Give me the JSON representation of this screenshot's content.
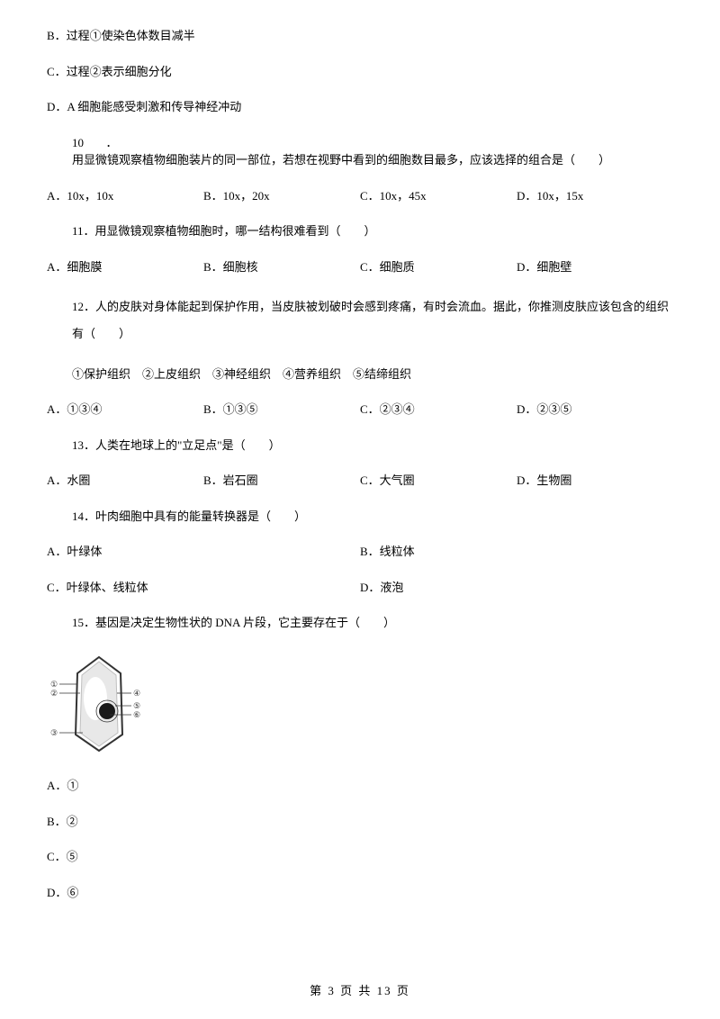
{
  "q9": {
    "optB": "B．过程①使染色体数目减半",
    "optC": "C．过程②表示细胞分化",
    "optD": "D．A 细胞能感受刺激和传导神经冲动"
  },
  "q10": {
    "num": "10",
    "dot": "．",
    "stem": "用显微镜观察植物细胞装片的同一部位，若想在视野中看到的细胞数目最多，应该选择的组合是（　　）",
    "A": "A．10x，10x",
    "B": "B．10x，20x",
    "C": "C．10x，45x",
    "D": "D．10x，15x"
  },
  "q11": {
    "lead": "11．用显微镜观察植物细胞时，哪一结构很难看到（　　）",
    "A": "A．细胞膜",
    "B": "B．细胞核",
    "C": "C．细胞质",
    "D": "D．细胞壁"
  },
  "q12": {
    "lead": "12．人的皮肤对身体能起到保护作用，当皮肤被划破时会感到疼痛，有时会流血。据此，你推测皮肤应该包含的组织有（　　）",
    "sub": "①保护组织　②上皮组织　③神经组织　④营养组织　⑤结缔组织",
    "A": "A．①③④",
    "B": "B．①③⑤",
    "C": "C．②③④",
    "D": "D．②③⑤"
  },
  "q13": {
    "lead": "13．人类在地球上的\"立足点\"是（　　）",
    "A": "A．水圈",
    "B": "B．岩石圈",
    "C": "C．大气圈",
    "D": "D．生物圈"
  },
  "q14": {
    "lead": "14．叶肉细胞中具有的能量转换器是（　　）",
    "A": "A．叶绿体",
    "B": "B．线粒体",
    "C": "C．叶绿体、线粒体",
    "D": "D．液泡"
  },
  "q15": {
    "lead": "15．基因是决定生物性状的 DNA 片段，它主要存在于（　　）",
    "A": "A．①",
    "B": "B．②",
    "C": "C．⑤",
    "D": "D．⑥"
  },
  "diagram": {
    "labels": {
      "l1": "①",
      "l2": "②",
      "l3": "③",
      "r1": "④",
      "r2": "⑤",
      "r3": "⑥"
    },
    "colors": {
      "wall": "#333333",
      "membrane": "#bfbfbf",
      "cytoplasm": "#e8e8e8",
      "nucleus": "#1a1a1a",
      "line": "#333333",
      "bg": "#ffffff"
    },
    "size": {
      "w": 108,
      "h": 120
    }
  },
  "footer": {
    "text": "第 3 页 共 13 页"
  }
}
